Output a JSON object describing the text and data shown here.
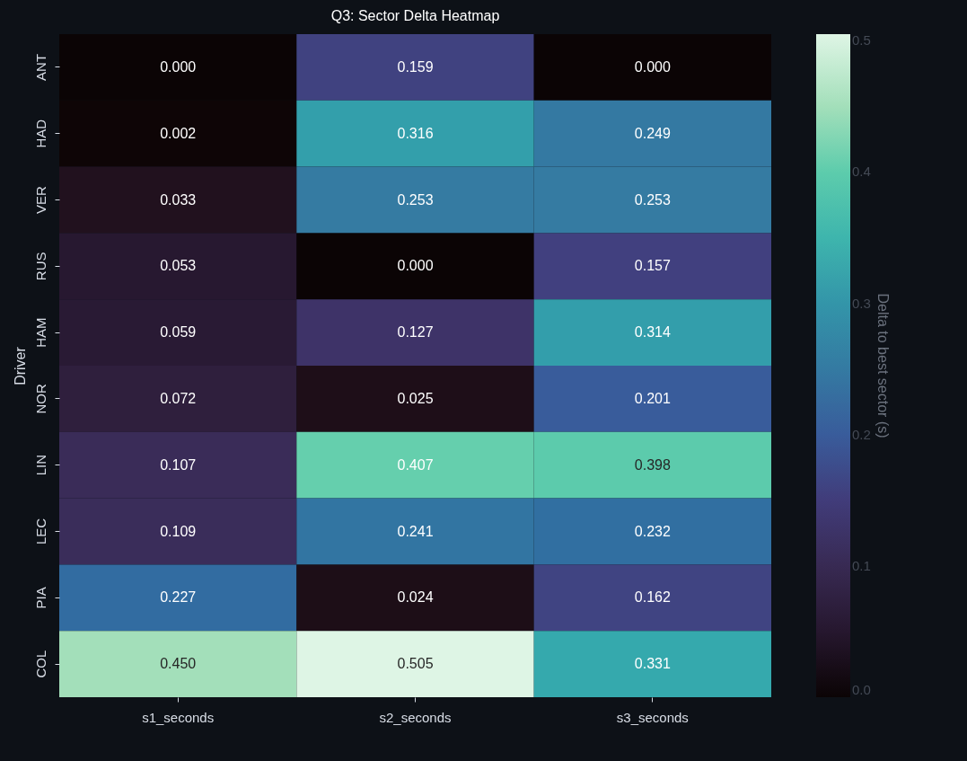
{
  "chart_data": {
    "type": "heatmap",
    "title": "Q3: Sector Delta Heatmap",
    "ylabel": "Driver",
    "clabel": "Delta to best sector (s)",
    "categories": [
      "s1_seconds",
      "s2_seconds",
      "s3_seconds"
    ],
    "y_categories": [
      "ANT",
      "HAD",
      "VER",
      "RUS",
      "HAM",
      "NOR",
      "LIN",
      "LEC",
      "PIA",
      "COL"
    ],
    "cells": [
      [
        0.0,
        0.159,
        0.0
      ],
      [
        0.002,
        0.316,
        0.249
      ],
      [
        0.033,
        0.253,
        0.253
      ],
      [
        0.053,
        0.0,
        0.157
      ],
      [
        0.059,
        0.127,
        0.314
      ],
      [
        0.072,
        0.025,
        0.201
      ],
      [
        0.107,
        0.407,
        0.398
      ],
      [
        0.109,
        0.241,
        0.232
      ],
      [
        0.227,
        0.024,
        0.162
      ],
      [
        0.45,
        0.505,
        0.331
      ]
    ],
    "cell_labels": [
      [
        "0.000",
        "0.159",
        "0.000"
      ],
      [
        "0.002",
        "0.316",
        "0.249"
      ],
      [
        "0.033",
        "0.253",
        "0.253"
      ],
      [
        "0.053",
        "0.000",
        "0.157"
      ],
      [
        "0.059",
        "0.127",
        "0.314"
      ],
      [
        "0.072",
        "0.025",
        "0.201"
      ],
      [
        "0.107",
        "0.407",
        "0.398"
      ],
      [
        "0.109",
        "0.241",
        "0.232"
      ],
      [
        "0.227",
        "0.024",
        "0.162"
      ],
      [
        "0.450",
        "0.505",
        "0.331"
      ]
    ],
    "clim": [
      0,
      0.505
    ],
    "cticks": [
      {
        "value": 0,
        "label": "0.0"
      },
      {
        "value": 0.1,
        "label": "0.1"
      },
      {
        "value": 0.2,
        "label": "0.2"
      },
      {
        "value": 0.3,
        "label": "0.3"
      },
      {
        "value": 0.4,
        "label": "0.4"
      },
      {
        "value": 0.5,
        "label": "0.5"
      }
    ]
  }
}
